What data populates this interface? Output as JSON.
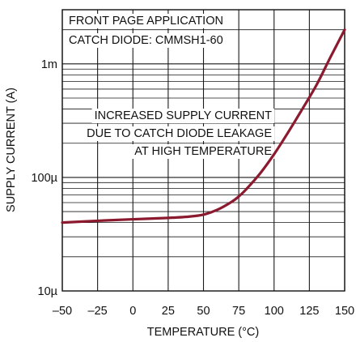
{
  "chart_data": {
    "type": "line",
    "title": "",
    "xlabel": "TEMPERATURE (°C)",
    "ylabel": "SUPPLY CURRENT (A)",
    "x_ticks": [
      "–50",
      "–25",
      "0",
      "25",
      "50",
      "75",
      "100",
      "125",
      "150"
    ],
    "x_tick_values": [
      -50,
      -25,
      0,
      25,
      50,
      75,
      100,
      125,
      150
    ],
    "y_ticks": [
      "10µ",
      "100µ",
      "1m"
    ],
    "y_tick_values": [
      1e-05,
      0.0001,
      0.001
    ],
    "xlim": [
      -50,
      150
    ],
    "ylim": [
      1e-05,
      0.003
    ],
    "y_scale": "log",
    "grid": true,
    "annotations": [
      "FRONT PAGE APPLICATION",
      "CATCH DIODE: CMMSH1-60",
      "INCREASED SUPPLY CURRENT",
      "DUE TO CATCH DIODE LEAKAGE",
      "AT HIGH TEMPERATURE"
    ],
    "series": [
      {
        "color": "#8b1a2f",
        "x": [
          -50,
          -25,
          0,
          25,
          40,
          50,
          60,
          70,
          75,
          80,
          90,
          100,
          110,
          120,
          130,
          140,
          150
        ],
        "y": [
          4e-05,
          4.15e-05,
          4.28e-05,
          4.4e-05,
          4.52e-05,
          4.7e-05,
          5.2e-05,
          6.1e-05,
          6.8e-05,
          7.8e-05,
          0.000108,
          0.00016,
          0.00025,
          0.0004,
          0.00065,
          0.00115,
          0.002
        ]
      }
    ]
  }
}
